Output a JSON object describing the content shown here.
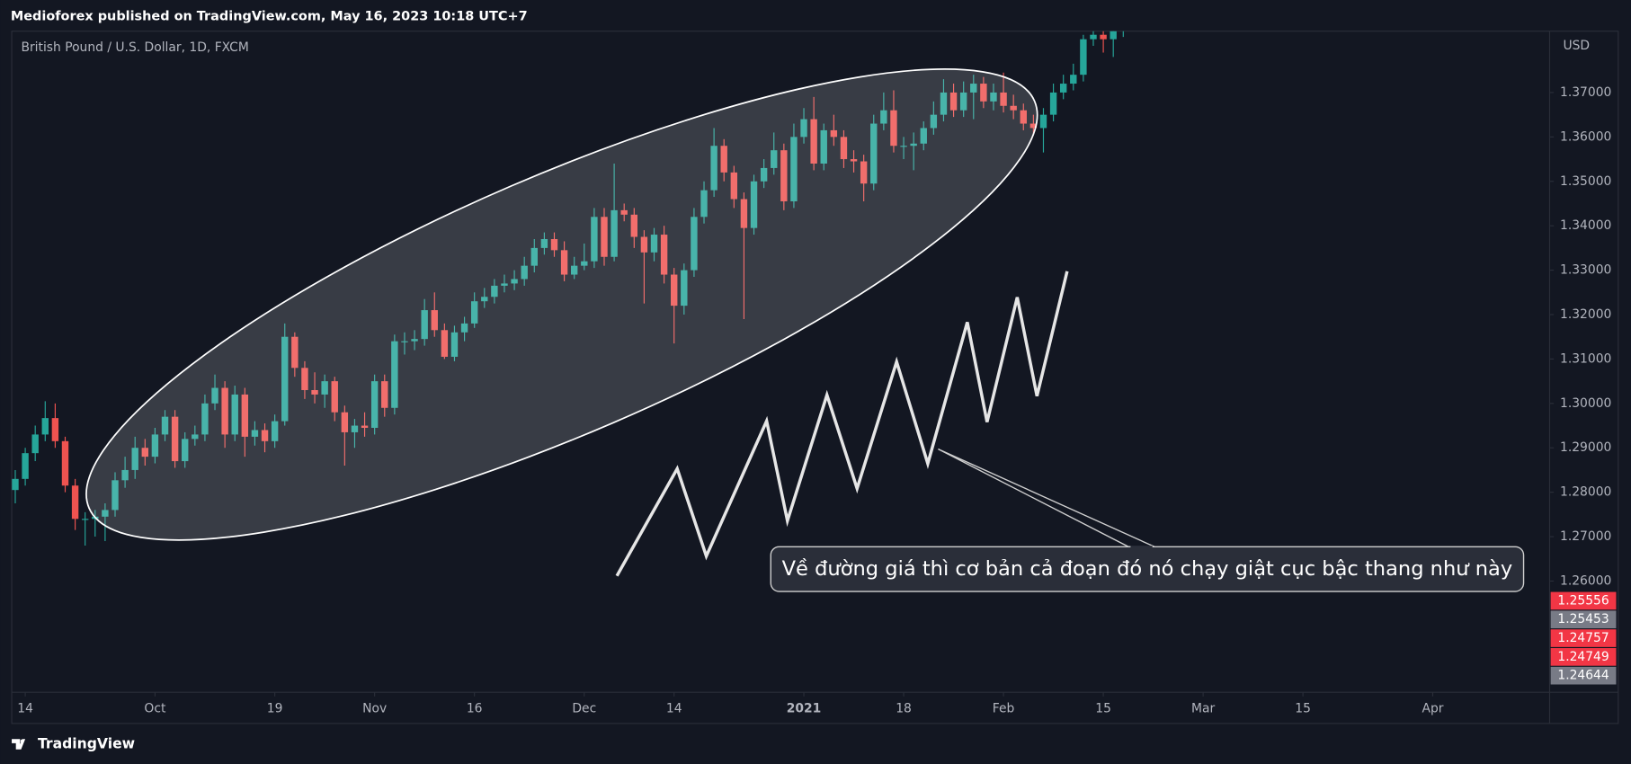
{
  "header": {
    "published": "Medioforex published on TradingView.com, May 16, 2023 10:18 UTC+7"
  },
  "footer": {
    "brand": "TradingView"
  },
  "chart_data": {
    "type": "candlestick",
    "title": "British Pound / U.S. Dollar, 1D, FXCM",
    "y_axis_label": "USD",
    "annotation": "Về đường giá thì cơ bản cả đoạn đó nó chạy giật cục bậc thang như này",
    "up_color": "#26a69a",
    "down_color": "#ef5350",
    "open": [
      1.2805,
      1.283,
      1.2888,
      1.293,
      1.2967,
      1.2915,
      1.2815,
      1.274,
      1.274,
      1.2745,
      1.276,
      1.2827,
      1.285,
      1.29,
      1.288,
      1.293,
      1.297,
      1.287,
      1.292,
      1.293,
      1.3,
      1.3035,
      1.293,
      1.302,
      1.2925,
      1.294,
      1.2915,
      1.296,
      1.315,
      1.308,
      1.303,
      1.302,
      1.305,
      1.298,
      1.2935,
      1.295,
      1.2945,
      1.305,
      1.299,
      1.314,
      1.314,
      1.3145,
      1.321,
      1.3165,
      1.3105,
      1.316,
      1.318,
      1.323,
      1.324,
      1.3265,
      1.327,
      1.328,
      1.331,
      1.335,
      1.337,
      1.3345,
      1.329,
      1.331,
      1.332,
      1.342,
      1.333,
      1.3435,
      1.3425,
      1.3375,
      1.334,
      1.338,
      1.329,
      1.322,
      1.33,
      1.342,
      1.348,
      1.358,
      1.352,
      1.346,
      1.3395,
      1.35,
      1.353,
      1.357,
      1.3455,
      1.36,
      1.364,
      1.354,
      1.3615,
      1.36,
      1.355,
      1.3545,
      1.3495,
      1.363,
      1.366,
      1.358,
      1.358,
      1.3585,
      1.362,
      1.365,
      1.37,
      1.366,
      1.37,
      1.372,
      1.368,
      1.37,
      1.367,
      1.366,
      1.363,
      1.362,
      1.365,
      1.37,
      1.372,
      1.374,
      1.382,
      1.383,
      1.382,
      1.384,
      1.388
    ],
    "high": [
      1.285,
      1.29,
      1.295,
      1.3005,
      1.3,
      1.2925,
      1.283,
      1.2755,
      1.276,
      1.2775,
      1.2845,
      1.288,
      1.2925,
      1.292,
      1.2945,
      1.2985,
      1.2985,
      1.2935,
      1.295,
      1.302,
      1.3065,
      1.305,
      1.304,
      1.3035,
      1.296,
      1.2955,
      1.2975,
      1.318,
      1.316,
      1.3095,
      1.307,
      1.3065,
      1.306,
      1.2995,
      1.2965,
      1.298,
      1.3065,
      1.3065,
      1.3155,
      1.316,
      1.3165,
      1.3235,
      1.325,
      1.318,
      1.3175,
      1.3195,
      1.325,
      1.326,
      1.328,
      1.329,
      1.33,
      1.333,
      1.337,
      1.3385,
      1.3385,
      1.3365,
      1.333,
      1.336,
      1.344,
      1.344,
      1.354,
      1.345,
      1.344,
      1.339,
      1.3395,
      1.34,
      1.3305,
      1.3315,
      1.344,
      1.35,
      1.362,
      1.3595,
      1.3535,
      1.3475,
      1.3515,
      1.355,
      1.361,
      1.3585,
      1.363,
      1.3665,
      1.369,
      1.363,
      1.365,
      1.3615,
      1.357,
      1.356,
      1.365,
      1.37,
      1.3705,
      1.36,
      1.361,
      1.3635,
      1.368,
      1.373,
      1.372,
      1.3725,
      1.374,
      1.3735,
      1.372,
      1.3745,
      1.3695,
      1.3675,
      1.365,
      1.3665,
      1.372,
      1.374,
      1.3765,
      1.383,
      1.385,
      1.3845,
      1.386,
      1.39,
      1.39
    ],
    "low": [
      1.2775,
      1.2815,
      1.287,
      1.2915,
      1.29,
      1.28,
      1.2715,
      1.268,
      1.27,
      1.269,
      1.2745,
      1.281,
      1.283,
      1.286,
      1.2865,
      1.2915,
      1.2855,
      1.2855,
      1.2905,
      1.2915,
      1.2985,
      1.29,
      1.2915,
      1.288,
      1.2905,
      1.289,
      1.29,
      1.295,
      1.306,
      1.301,
      1.3,
      1.299,
      1.296,
      1.286,
      1.29,
      1.2925,
      1.293,
      1.297,
      1.2975,
      1.311,
      1.312,
      1.313,
      1.315,
      1.31,
      1.3095,
      1.314,
      1.317,
      1.3215,
      1.3225,
      1.325,
      1.3255,
      1.3265,
      1.3295,
      1.3335,
      1.333,
      1.3275,
      1.328,
      1.33,
      1.3305,
      1.331,
      1.332,
      1.341,
      1.335,
      1.3225,
      1.332,
      1.327,
      1.3135,
      1.32,
      1.3285,
      1.3405,
      1.3465,
      1.35,
      1.344,
      1.319,
      1.338,
      1.3485,
      1.3515,
      1.3435,
      1.344,
      1.3585,
      1.3525,
      1.3525,
      1.358,
      1.353,
      1.352,
      1.3455,
      1.348,
      1.3615,
      1.3565,
      1.355,
      1.3525,
      1.357,
      1.3605,
      1.3635,
      1.3645,
      1.3645,
      1.364,
      1.3665,
      1.366,
      1.3655,
      1.364,
      1.3615,
      1.3605,
      1.3565,
      1.3635,
      1.3685,
      1.3705,
      1.3725,
      1.3805,
      1.379,
      1.378,
      1.3825,
      1.386
    ],
    "close": [
      1.283,
      1.2888,
      1.293,
      1.2967,
      1.2915,
      1.2815,
      1.274,
      1.274,
      1.2745,
      1.276,
      1.2827,
      1.285,
      1.29,
      1.288,
      1.293,
      1.297,
      1.287,
      1.292,
      1.293,
      1.3,
      1.3035,
      1.293,
      1.302,
      1.2925,
      1.294,
      1.2915,
      1.296,
      1.315,
      1.308,
      1.303,
      1.302,
      1.305,
      1.298,
      1.2935,
      1.295,
      1.2945,
      1.305,
      1.299,
      1.314,
      1.314,
      1.3145,
      1.321,
      1.3165,
      1.3105,
      1.316,
      1.318,
      1.323,
      1.324,
      1.3265,
      1.327,
      1.328,
      1.331,
      1.335,
      1.337,
      1.3345,
      1.329,
      1.331,
      1.332,
      1.342,
      1.333,
      1.3435,
      1.3425,
      1.3375,
      1.334,
      1.338,
      1.329,
      1.322,
      1.33,
      1.342,
      1.348,
      1.358,
      1.352,
      1.346,
      1.3395,
      1.35,
      1.353,
      1.357,
      1.3455,
      1.36,
      1.364,
      1.354,
      1.3615,
      1.36,
      1.355,
      1.3545,
      1.3495,
      1.363,
      1.366,
      1.358,
      1.358,
      1.3585,
      1.362,
      1.365,
      1.37,
      1.366,
      1.37,
      1.372,
      1.368,
      1.37,
      1.367,
      1.366,
      1.363,
      1.362,
      1.365,
      1.37,
      1.372,
      1.374,
      1.382,
      1.383,
      1.382,
      1.384,
      1.388,
      1.387
    ],
    "xlim": [
      -0.354,
      153.71
    ],
    "xticks": [
      {
        "value": 1,
        "label": "14"
      },
      {
        "value": 14,
        "label": "Oct"
      },
      {
        "value": 26,
        "label": "19"
      },
      {
        "value": 36,
        "label": "Nov"
      },
      {
        "value": 46,
        "label": "16"
      },
      {
        "value": 57,
        "label": "Dec"
      },
      {
        "value": 66,
        "label": "14"
      },
      {
        "value": 79,
        "label": "2021"
      },
      {
        "value": 89,
        "label": "18"
      },
      {
        "value": 99,
        "label": "Feb"
      },
      {
        "value": 109,
        "label": "15"
      },
      {
        "value": 119,
        "label": "Mar"
      },
      {
        "value": 129,
        "label": "15"
      },
      {
        "value": 142,
        "label": "Apr"
      }
    ],
    "ylim": [
      1.23496,
      1.38381
    ],
    "yticks": [
      {
        "value": 1.26,
        "label": "1.26000"
      },
      {
        "value": 1.27,
        "label": "1.27000"
      },
      {
        "value": 1.28,
        "label": "1.28000"
      },
      {
        "value": 1.29,
        "label": "1.29000"
      },
      {
        "value": 1.3,
        "label": "1.30000"
      },
      {
        "value": 1.31,
        "label": "1.31000"
      },
      {
        "value": 1.32,
        "label": "1.32000"
      },
      {
        "value": 1.33,
        "label": "1.33000"
      },
      {
        "value": 1.34,
        "label": "1.34000"
      },
      {
        "value": 1.35,
        "label": "1.35000"
      },
      {
        "value": 1.36,
        "label": "1.36000"
      },
      {
        "value": 1.37,
        "label": "1.37000"
      }
    ],
    "price_labels": [
      {
        "value": 1.25556,
        "color": "#f23645"
      },
      {
        "value": 1.25453,
        "color": "#787b86"
      },
      {
        "value": 1.24757,
        "color": "#f23645"
      },
      {
        "value": 1.24749,
        "color": "#f23645"
      },
      {
        "value": 1.24644,
        "color": "#787b86"
      }
    ]
  }
}
